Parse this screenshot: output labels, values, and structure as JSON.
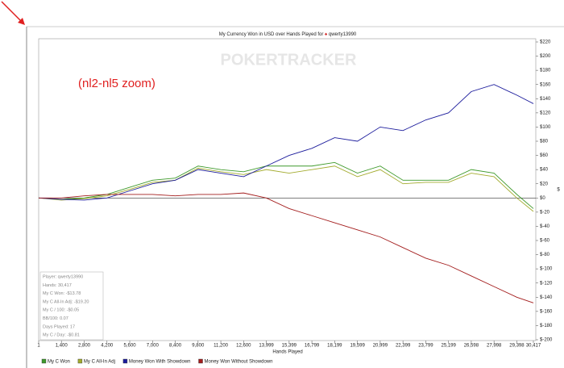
{
  "chart_data": {
    "type": "line",
    "title": "My Currency Won in USD over Hands Played for",
    "player": "qwerty13990",
    "watermark": "POKERTRACKER",
    "annotation": "(nl2-nl5 zoom)",
    "xlabel": "Hands Played",
    "ylabel": "$",
    "x": [
      1,
      1400,
      2800,
      4200,
      5600,
      7000,
      8400,
      9800,
      11200,
      12600,
      13999,
      15399,
      16799,
      18199,
      19599,
      20999,
      22399,
      23799,
      25199,
      26598,
      27998,
      29398,
      30417
    ],
    "xlim": [
      1,
      30417
    ],
    "xticks": [
      1,
      {
        "value": 1400,
        "label": "1,400"
      },
      {
        "value": 2800,
        "label": "2,800"
      },
      {
        "value": 4200,
        "label": "4,200"
      },
      {
        "value": 5600,
        "label": "5,600"
      },
      {
        "value": 7000,
        "label": "7,000"
      },
      {
        "value": 8400,
        "label": "8,400"
      },
      {
        "value": 9800,
        "label": "9,800"
      },
      {
        "value": 11200,
        "label": "11,200"
      },
      {
        "value": 12600,
        "label": "12,600"
      },
      {
        "value": 13999,
        "label": "13,999"
      },
      {
        "value": 15399,
        "label": "15,399"
      },
      {
        "value": 16799,
        "label": "16,799"
      },
      {
        "value": 18199,
        "label": "18,199"
      },
      {
        "value": 19599,
        "label": "19,599"
      },
      {
        "value": 20999,
        "label": "20,999"
      },
      {
        "value": 22399,
        "label": "22,399"
      },
      {
        "value": 23799,
        "label": "23,799"
      },
      {
        "value": 25199,
        "label": "25,199"
      },
      {
        "value": 26598,
        "label": "26,598"
      },
      {
        "value": 27998,
        "label": "27,998"
      },
      {
        "value": 29398,
        "label": "29,398"
      },
      {
        "value": 30417,
        "label": "30,417"
      }
    ],
    "ylim": [
      -200,
      220
    ],
    "yticks": [
      {
        "value": 220,
        "label": "$220"
      },
      {
        "value": 200,
        "label": "$200"
      },
      {
        "value": 180,
        "label": "$180"
      },
      {
        "value": 160,
        "label": "$160"
      },
      {
        "value": 140,
        "label": "$140"
      },
      {
        "value": 120,
        "label": "$120"
      },
      {
        "value": 100,
        "label": "$100"
      },
      {
        "value": 80,
        "label": "$80"
      },
      {
        "value": 60,
        "label": "$60"
      },
      {
        "value": 40,
        "label": "$40"
      },
      {
        "value": 20,
        "label": "$20"
      },
      {
        "value": 0,
        "label": "$0"
      },
      {
        "value": -20,
        "label": "$-20"
      },
      {
        "value": -40,
        "label": "$-40"
      },
      {
        "value": -60,
        "label": "$-60"
      },
      {
        "value": -80,
        "label": "$-80"
      },
      {
        "value": -100,
        "label": "$-100"
      },
      {
        "value": -120,
        "label": "$-120"
      },
      {
        "value": -140,
        "label": "$-140"
      },
      {
        "value": -160,
        "label": "$-160"
      },
      {
        "value": -180,
        "label": "$-180"
      },
      {
        "value": -200,
        "label": "$-200"
      }
    ],
    "legend": "bottom",
    "series": [
      {
        "name": "My C Won",
        "color": "#3f9a2c",
        "values": [
          0,
          -2,
          0,
          5,
          15,
          25,
          28,
          45,
          40,
          37,
          45,
          45,
          45,
          50,
          35,
          45,
          25,
          25,
          25,
          40,
          35,
          5,
          -15
        ]
      },
      {
        "name": "My C All-In Adj",
        "color": "#a3ab2e",
        "values": [
          0,
          -3,
          -1,
          3,
          12,
          22,
          25,
          42,
          37,
          33,
          40,
          35,
          40,
          45,
          30,
          40,
          20,
          22,
          22,
          35,
          30,
          0,
          -19
        ]
      },
      {
        "name": "Money Won With Showdown",
        "color": "#1c1c9c",
        "values": [
          0,
          -2,
          -3,
          0,
          10,
          20,
          25,
          40,
          35,
          30,
          45,
          60,
          70,
          85,
          80,
          100,
          95,
          110,
          120,
          150,
          160,
          145,
          133
        ]
      },
      {
        "name": "Money Won Without Showdown",
        "color": "#a31c1c",
        "values": [
          0,
          0,
          3,
          5,
          5,
          5,
          3,
          5,
          5,
          7,
          0,
          -15,
          -25,
          -35,
          -45,
          -55,
          -70,
          -85,
          -95,
          -110,
          -125,
          -140,
          -148
        ]
      }
    ],
    "info_box": [
      "Player: qwerty13990",
      "Hands: 30,417",
      "My C Won: -$13.78",
      "My C All-In Adj: -$19.20",
      "My C / 100: -$0.05",
      "BB/100: 0.07",
      "Days Played: 17",
      "My C / Day: -$0.81"
    ]
  }
}
